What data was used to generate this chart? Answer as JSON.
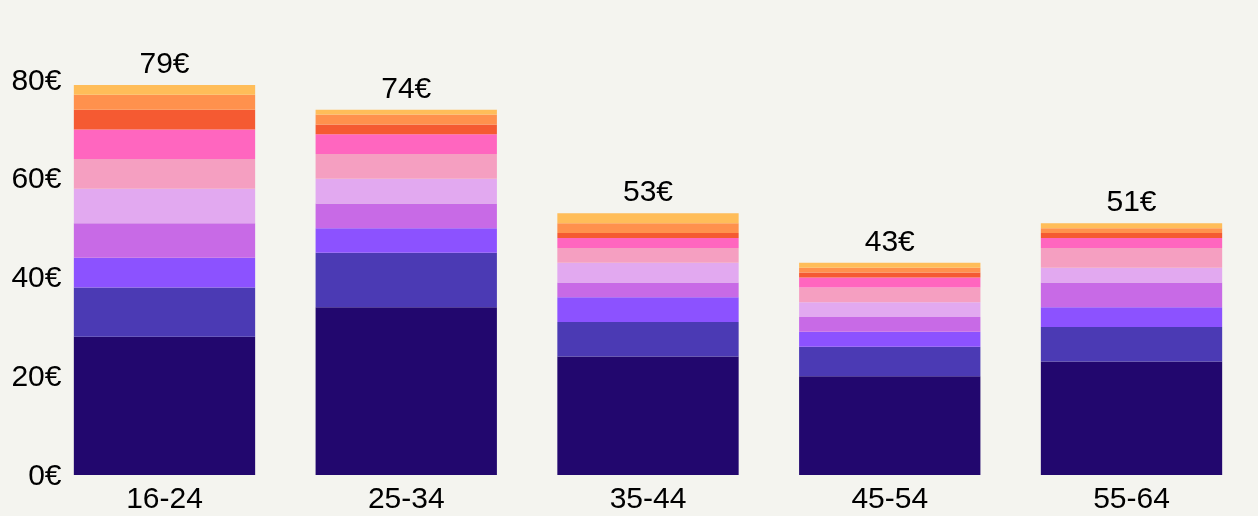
{
  "chart_data": {
    "type": "bar",
    "stacked": true,
    "categories": [
      "16-24",
      "25-34",
      "35-44",
      "45-54",
      "55-64"
    ],
    "series": [
      {
        "color": "#22076e",
        "values": [
          28,
          34,
          24,
          20,
          23
        ]
      },
      {
        "color": "#4b3ab4",
        "values": [
          10,
          11,
          7,
          6,
          7
        ]
      },
      {
        "color": "#8c52ff",
        "values": [
          6,
          5,
          5,
          3,
          4
        ]
      },
      {
        "color": "#c86ae6",
        "values": [
          7,
          5,
          3,
          3,
          5
        ]
      },
      {
        "color": "#e2a9f0",
        "values": [
          7,
          5,
          4,
          3,
          3
        ]
      },
      {
        "color": "#f59fc1",
        "values": [
          6,
          5,
          3,
          3,
          4
        ]
      },
      {
        "color": "#ff66bf",
        "values": [
          6,
          4,
          2,
          2,
          2
        ]
      },
      {
        "color": "#f55a32",
        "values": [
          4,
          2,
          1,
          1,
          1
        ]
      },
      {
        "color": "#ff914d",
        "values": [
          3,
          2,
          2,
          1,
          1
        ]
      },
      {
        "color": "#ffbd59",
        "values": [
          2,
          1,
          2,
          1,
          1
        ]
      }
    ],
    "totals": [
      "79€",
      "74€",
      "53€",
      "43€",
      "51€"
    ],
    "ylim": [
      0,
      80
    ],
    "yticks": [
      {
        "value": 0,
        "label": "0€"
      },
      {
        "value": 20,
        "label": "20€"
      },
      {
        "value": 40,
        "label": "40€"
      },
      {
        "value": 60,
        "label": "60€"
      },
      {
        "value": 80,
        "label": "80€"
      }
    ],
    "grid": false,
    "legend": false
  }
}
